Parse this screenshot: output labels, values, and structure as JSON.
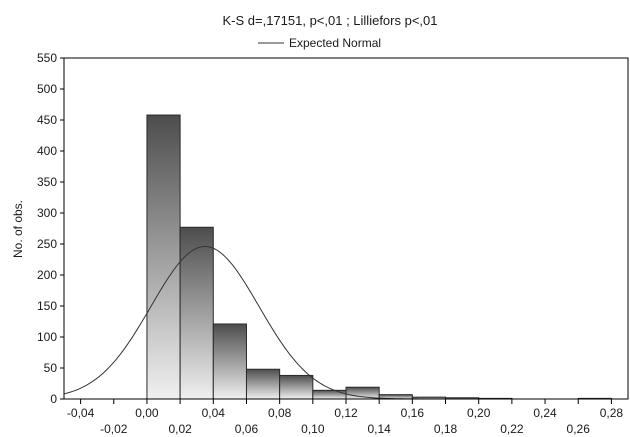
{
  "chart_data": {
    "type": "bar",
    "title": "K-S d=,17151, p<,01 ; Lilliefors p<,01",
    "legend": {
      "label": "Expected Normal",
      "placement": "top"
    },
    "ylabel": "No. of obs.",
    "xlabel": "",
    "xlim": [
      -0.05,
      0.29
    ],
    "ylim": [
      0,
      550
    ],
    "yticks": [
      "0",
      "50",
      "100",
      "150",
      "200",
      "250",
      "300",
      "350",
      "400",
      "450",
      "500",
      "550"
    ],
    "xticks_upper": [
      "-0,04",
      "0,00",
      "0,04",
      "0,08",
      "0,12",
      "0,16",
      "0,20",
      "0,24",
      "0,28"
    ],
    "xticks_lower": [
      "-0,02",
      "0,02",
      "0,06",
      "0,10",
      "0,14",
      "0,18",
      "0,22",
      "0,26"
    ],
    "bins": [
      {
        "from": 0.0,
        "to": 0.02,
        "count": 458
      },
      {
        "from": 0.02,
        "to": 0.04,
        "count": 277
      },
      {
        "from": 0.04,
        "to": 0.06,
        "count": 121
      },
      {
        "from": 0.06,
        "to": 0.08,
        "count": 48
      },
      {
        "from": 0.08,
        "to": 0.1,
        "count": 38
      },
      {
        "from": 0.1,
        "to": 0.12,
        "count": 14
      },
      {
        "from": 0.12,
        "to": 0.14,
        "count": 19
      },
      {
        "from": 0.14,
        "to": 0.16,
        "count": 7
      },
      {
        "from": 0.16,
        "to": 0.18,
        "count": 3
      },
      {
        "from": 0.18,
        "to": 0.2,
        "count": 2
      },
      {
        "from": 0.2,
        "to": 0.22,
        "count": 1
      },
      {
        "from": 0.22,
        "to": 0.24,
        "count": 0
      },
      {
        "from": 0.24,
        "to": 0.26,
        "count": 0
      },
      {
        "from": 0.26,
        "to": 0.28,
        "count": 1
      }
    ],
    "expected_normal": {
      "mean": 0.035,
      "peak": 246,
      "sd": 0.0326
    },
    "grid": false
  }
}
